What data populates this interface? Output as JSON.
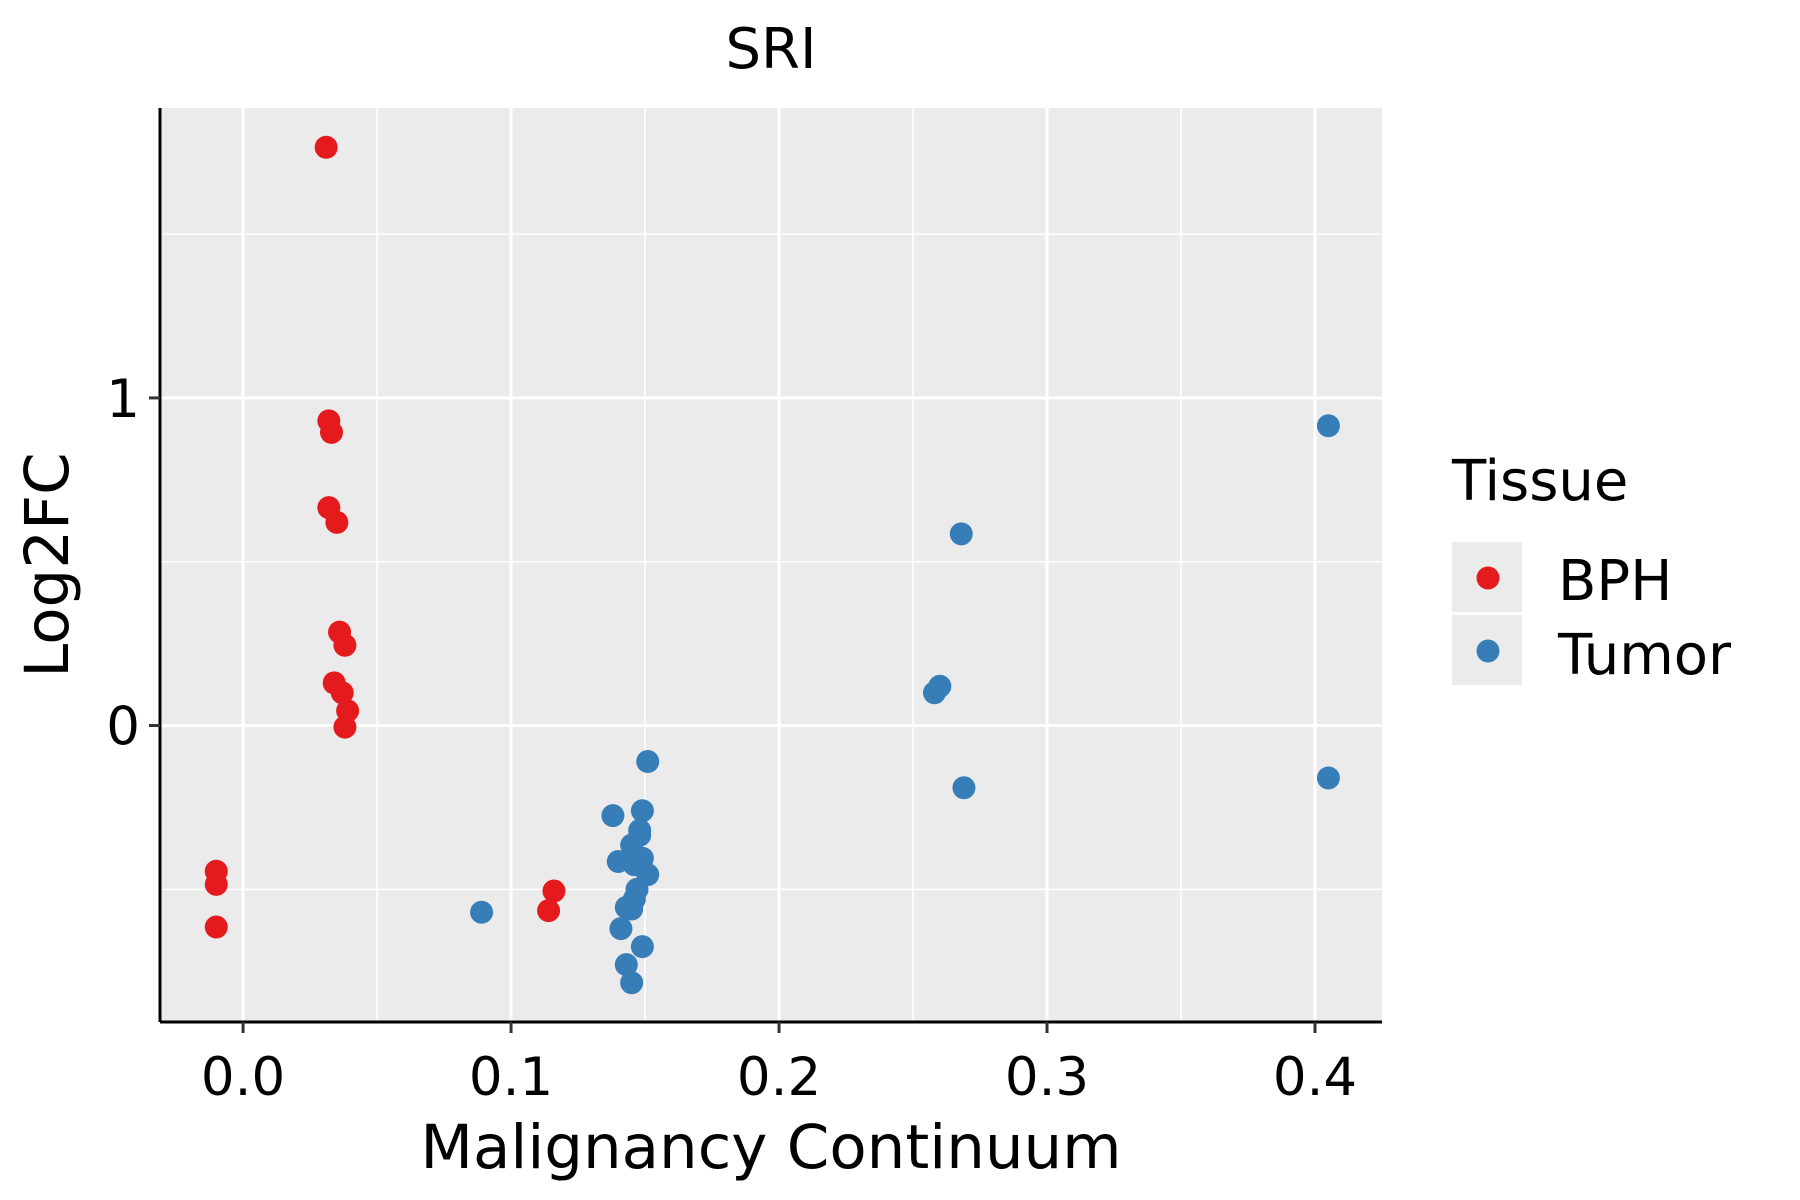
{
  "chart_data": {
    "type": "scatter",
    "title": "SRI",
    "xlabel": "Malignancy Continuum",
    "ylabel": "Log2FC",
    "xlim": [
      -0.031,
      0.425
    ],
    "ylim": [
      -0.905,
      1.885
    ],
    "x_ticks": [
      {
        "value": 0.0,
        "label": "0.0"
      },
      {
        "value": 0.1,
        "label": "0.1"
      },
      {
        "value": 0.2,
        "label": "0.2"
      },
      {
        "value": 0.3,
        "label": "0.3"
      },
      {
        "value": 0.4,
        "label": "0.4"
      }
    ],
    "y_ticks": [
      {
        "value": 0,
        "label": "0"
      },
      {
        "value": 1,
        "label": "1"
      }
    ],
    "x_minor_ticks": [
      0.05,
      0.15,
      0.25,
      0.35
    ],
    "y_minor_ticks": [
      -0.5,
      0.5,
      1.5
    ],
    "grid": true,
    "legend": {
      "title": "Tissue",
      "position": "right"
    },
    "series": [
      {
        "name": "BPH",
        "color": "#e41a1c",
        "points": [
          {
            "x": 0.031,
            "y": 1.765
          },
          {
            "x": 0.032,
            "y": 0.93
          },
          {
            "x": 0.033,
            "y": 0.895
          },
          {
            "x": 0.032,
            "y": 0.665
          },
          {
            "x": 0.035,
            "y": 0.62
          },
          {
            "x": 0.036,
            "y": 0.285
          },
          {
            "x": 0.038,
            "y": 0.245
          },
          {
            "x": 0.034,
            "y": 0.13
          },
          {
            "x": 0.037,
            "y": 0.1
          },
          {
            "x": 0.039,
            "y": 0.045
          },
          {
            "x": 0.038,
            "y": -0.005
          },
          {
            "x": -0.01,
            "y": -0.445
          },
          {
            "x": -0.01,
            "y": -0.485
          },
          {
            "x": -0.01,
            "y": -0.615
          },
          {
            "x": 0.116,
            "y": -0.505
          },
          {
            "x": 0.114,
            "y": -0.565
          }
        ]
      },
      {
        "name": "Tumor",
        "color": "#377eb8",
        "points": [
          {
            "x": 0.405,
            "y": 0.915
          },
          {
            "x": 0.405,
            "y": -0.16
          },
          {
            "x": 0.268,
            "y": 0.585
          },
          {
            "x": 0.269,
            "y": -0.19
          },
          {
            "x": 0.26,
            "y": 0.12
          },
          {
            "x": 0.258,
            "y": 0.1
          },
          {
            "x": 0.089,
            "y": -0.57
          },
          {
            "x": 0.151,
            "y": -0.11
          },
          {
            "x": 0.149,
            "y": -0.26
          },
          {
            "x": 0.138,
            "y": -0.275
          },
          {
            "x": 0.148,
            "y": -0.32
          },
          {
            "x": 0.148,
            "y": -0.335
          },
          {
            "x": 0.145,
            "y": -0.365
          },
          {
            "x": 0.149,
            "y": -0.405
          },
          {
            "x": 0.14,
            "y": -0.415
          },
          {
            "x": 0.146,
            "y": -0.425
          },
          {
            "x": 0.151,
            "y": -0.455
          },
          {
            "x": 0.147,
            "y": -0.5
          },
          {
            "x": 0.146,
            "y": -0.53
          },
          {
            "x": 0.145,
            "y": -0.56
          },
          {
            "x": 0.143,
            "y": -0.555
          },
          {
            "x": 0.141,
            "y": -0.62
          },
          {
            "x": 0.149,
            "y": -0.675
          },
          {
            "x": 0.143,
            "y": -0.73
          },
          {
            "x": 0.145,
            "y": -0.785
          }
        ]
      }
    ]
  }
}
